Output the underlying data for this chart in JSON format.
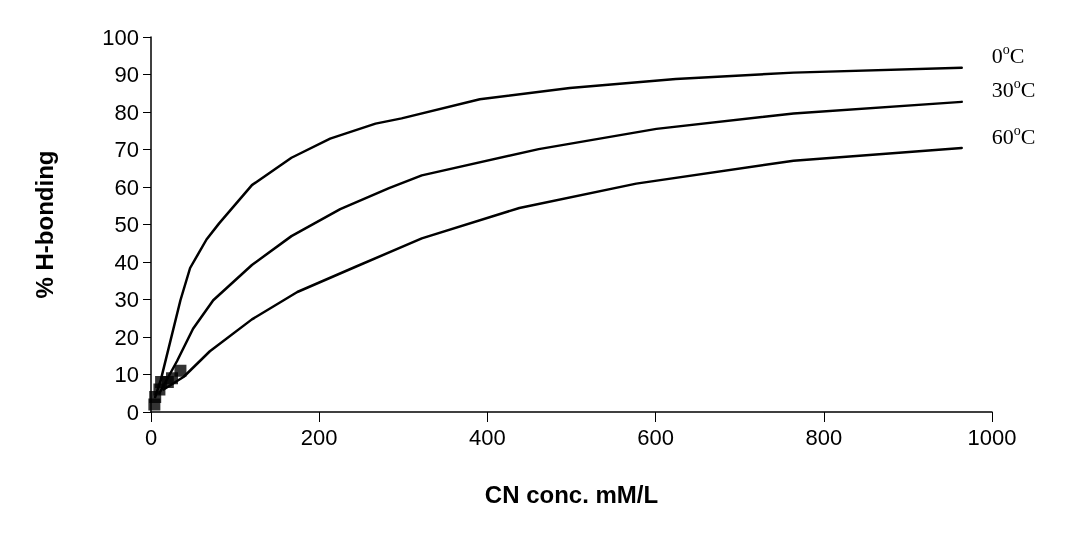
{
  "chart_data": {
    "type": "line",
    "xlabel": "CN conc. mM/L",
    "ylabel": "% H-bonding",
    "xlim": [
      0,
      1000
    ],
    "xticks": [
      0,
      200,
      400,
      600,
      800,
      1000
    ],
    "ylim": [
      0,
      100
    ],
    "yticks": [
      0,
      10,
      20,
      30,
      40,
      50,
      60,
      70,
      80,
      90,
      100
    ],
    "grid": false,
    "legend": false,
    "marker": "none",
    "line_style": "solid",
    "series": [
      {
        "name": "0$^{o}$C",
        "color": "#000000",
        "x": [
          5,
          11.6,
          35,
          46.5,
          66,
          81,
          120,
          167,
          213,
          267,
          298,
          391,
          498,
          624,
          764,
          964
        ],
        "values": [
          4,
          8.5,
          29.8,
          38.4,
          46,
          50.3,
          60.5,
          67.8,
          72.9,
          76.9,
          78.3,
          83.4,
          86.4,
          88.8,
          90.5,
          91.8
        ]
      },
      {
        "name": "30$^{o}$C",
        "color": "#000000",
        "x": [
          10,
          31,
          50,
          74,
          120,
          167,
          225,
          283,
          322,
          461,
          601,
          764,
          964
        ],
        "values": [
          5,
          13.6,
          22.2,
          29.8,
          39.2,
          46.9,
          54.1,
          59.7,
          63.1,
          70.1,
          75.5,
          79.6,
          82.7
        ]
      },
      {
        "name": "60$^{o}$C",
        "color": "#000000",
        "x": [
          15,
          39,
          70,
          120,
          174,
          244,
          322,
          438,
          577,
          764,
          964
        ],
        "values": [
          6,
          9.4,
          16.2,
          24.7,
          32,
          38.8,
          46.3,
          54.4,
          60.9,
          67,
          70.4
        ]
      },
      {
        "type": "scatter",
        "marker": "square",
        "color": "#000000",
        "x": [
          4,
          5,
          10,
          12,
          20,
          25,
          35
        ],
        "values": [
          2,
          4,
          6,
          8,
          8,
          9,
          11
        ]
      }
    ]
  }
}
